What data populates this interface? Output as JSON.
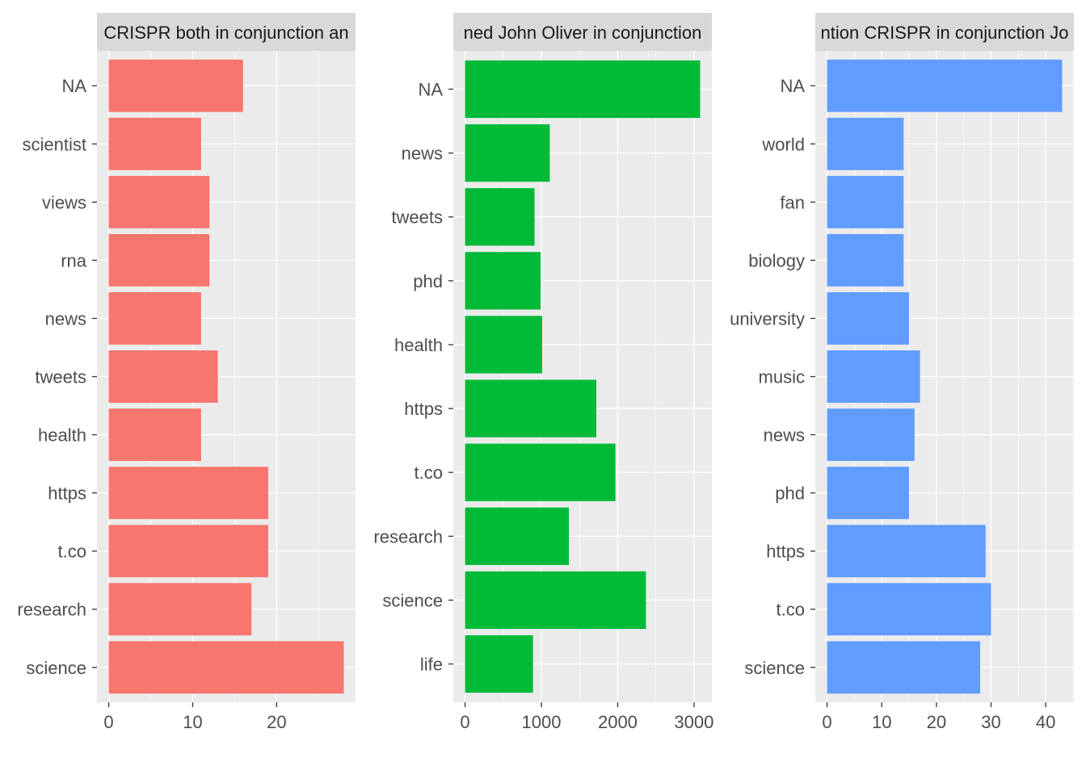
{
  "colors": {
    "panel_background": "#EBEBEB",
    "grid_major": "#FFFFFF",
    "strip_background": "#D9D9D9",
    "tick_label_text": "#4D4D4D",
    "strip_text": "#1A1A1A",
    "page_background": "#FFFFFF"
  },
  "chart_data": [
    {
      "type": "bar",
      "orientation": "horizontal",
      "title": "CRISPR both in conjunction an",
      "color": "#F8766D",
      "categories": [
        "NA",
        "scientist",
        "views",
        "rna",
        "news",
        "tweets",
        "health",
        "https",
        "t.co",
        "research",
        "science"
      ],
      "values": [
        16,
        11,
        12,
        12,
        11,
        13,
        11,
        19,
        19,
        17,
        28
      ],
      "x_ticks": [
        0,
        10,
        20
      ],
      "xlim": [
        -1.4,
        29.4
      ],
      "grid": true
    },
    {
      "type": "bar",
      "orientation": "horizontal",
      "title": "ned John Oliver in conjunction",
      "color": "#00BA38",
      "categories": [
        "NA",
        "news",
        "tweets",
        "phd",
        "health",
        "https",
        "t.co",
        "research",
        "science",
        "life"
      ],
      "values": [
        3080,
        1110,
        910,
        990,
        1010,
        1720,
        1970,
        1360,
        2370,
        890
      ],
      "x_ticks": [
        0,
        1000,
        2000,
        3000
      ],
      "xlim": [
        -154,
        3234
      ],
      "grid": true
    },
    {
      "type": "bar",
      "orientation": "horizontal",
      "title": "ntion CRISPR in conjunction Jo",
      "color": "#619CFF",
      "categories": [
        "NA",
        "world",
        "fan",
        "biology",
        "university",
        "music",
        "news",
        "phd",
        "https",
        "t.co",
        "science"
      ],
      "values": [
        43,
        14,
        14,
        14,
        15,
        17,
        16,
        15,
        29,
        30,
        28
      ],
      "x_ticks": [
        0,
        10,
        20,
        30,
        40
      ],
      "xlim": [
        -2.15,
        45.15
      ],
      "grid": true
    }
  ]
}
